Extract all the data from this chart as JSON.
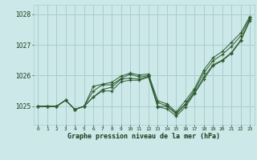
{
  "title": "Graphe pression niveau de la mer (hPa)",
  "background_color": "#cce8e8",
  "grid_color": "#aacece",
  "line_color": "#2d5a2d",
  "marker": "+",
  "x_labels": [
    "0",
    "1",
    "2",
    "3",
    "4",
    "5",
    "6",
    "7",
    "8",
    "9",
    "10",
    "11",
    "12",
    "13",
    "14",
    "15",
    "16",
    "17",
    "18",
    "19",
    "20",
    "21",
    "22",
    "23"
  ],
  "ylim": [
    1024.4,
    1028.3
  ],
  "yticks": [
    1025,
    1026,
    1027,
    1028
  ],
  "series": [
    [
      1025.0,
      1025.0,
      1025.0,
      1025.2,
      1024.9,
      1025.0,
      1025.3,
      1025.5,
      1025.5,
      1025.8,
      1025.85,
      1025.85,
      1025.95,
      1025.0,
      1025.0,
      1024.75,
      1025.05,
      1025.45,
      1025.95,
      1026.35,
      1026.5,
      1026.75,
      1027.15,
      1027.82
    ],
    [
      1025.0,
      1025.0,
      1025.0,
      1025.2,
      1024.9,
      1025.0,
      1025.5,
      1025.7,
      1025.7,
      1025.9,
      1026.05,
      1025.95,
      1026.0,
      1025.12,
      1025.02,
      1024.78,
      1025.08,
      1025.52,
      1026.08,
      1026.48,
      1026.68,
      1026.95,
      1027.28,
      1027.88
    ],
    [
      1025.0,
      1025.0,
      1025.0,
      1025.2,
      1024.9,
      1025.0,
      1025.65,
      1025.72,
      1025.78,
      1025.98,
      1026.08,
      1026.02,
      1026.05,
      1025.18,
      1025.08,
      1024.82,
      1025.18,
      1025.58,
      1026.18,
      1026.58,
      1026.78,
      1027.08,
      1027.38,
      1027.92
    ],
    [
      1025.0,
      1025.0,
      1025.0,
      1025.2,
      1024.9,
      1025.0,
      1025.3,
      1025.55,
      1025.62,
      1025.88,
      1025.92,
      1025.88,
      1025.98,
      1024.98,
      1024.92,
      1024.68,
      1024.98,
      1025.42,
      1025.88,
      1026.32,
      1026.48,
      1026.72,
      1027.12,
      1027.78
    ]
  ]
}
